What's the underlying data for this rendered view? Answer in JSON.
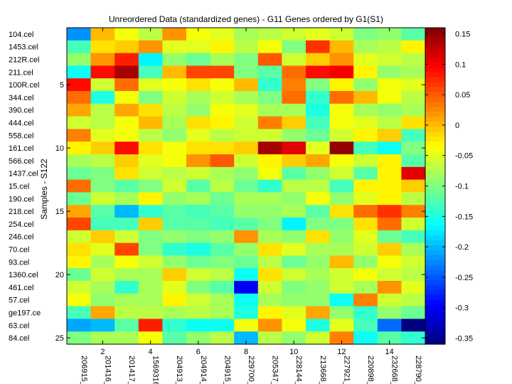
{
  "chart_data": {
    "type": "heatmap",
    "title": "Unreordered Data (standardized genes) - G11 Genes ordered by G1(S1)",
    "ylabel": "Samples - S122",
    "xlabel": "",
    "row_labels": [
      "104.cel",
      "1453.cel",
      "212R.cel",
      "211.cel",
      "100R.cel",
      "344.cel",
      "390.cel",
      "444.cel",
      "558.cel",
      "161.cel",
      "566.cel",
      "1437.cel",
      "15.cel",
      "190.cel",
      "218.cel",
      "254.cel",
      "246.cel",
      "70.cel",
      "93.cel",
      "1360.cel",
      "461.cel",
      "57.cel",
      "ge197.ce",
      "63.cel",
      "84.cel"
    ],
    "col_labels": [
      "206915_",
      "201416_",
      "201417_",
      "1569316",
      "204913_",
      "204914_",
      "204915_",
      "229700_",
      "205347_",
      "228144_",
      "213668_",
      "227921_",
      "220898_",
      "232668_",
      "228790_"
    ],
    "x_ticks": [
      2,
      4,
      6,
      8,
      10,
      12,
      14
    ],
    "y_ticks": [
      5,
      10,
      15,
      20,
      25
    ],
    "colorbar": {
      "min": -0.36,
      "max": 0.16,
      "ticks": [
        0.15,
        0.1,
        0.05,
        0,
        -0.05,
        -0.1,
        -0.15,
        -0.2,
        -0.25,
        -0.3,
        -0.35
      ],
      "tick_labels": [
        "0.15",
        "0.1",
        "0.05",
        "0",
        "-0.05",
        "-0.1",
        "-0.15",
        "-0.2",
        "-0.25",
        "-0.3",
        "-0.35"
      ]
    },
    "values": [
      [
        -0.22,
        0.0,
        -0.04,
        -0.07,
        0.02,
        -0.04,
        -0.05,
        -0.08,
        -0.07,
        -0.06,
        -0.05,
        -0.06,
        -0.1,
        -0.09,
        -0.12
      ],
      [
        -0.13,
        -0.02,
        -0.01,
        0.02,
        -0.05,
        -0.05,
        -0.03,
        -0.07,
        -0.04,
        -0.1,
        0.07,
        0.0,
        -0.08,
        -0.07,
        -0.03
      ],
      [
        -0.09,
        0.02,
        0.08,
        -0.17,
        -0.09,
        -0.11,
        -0.08,
        -0.1,
        0.05,
        -0.06,
        -0.01,
        0.02,
        -0.05,
        -0.06,
        -0.07
      ],
      [
        -0.16,
        0.09,
        0.14,
        -0.13,
        0.0,
        0.06,
        0.06,
        -0.1,
        -0.12,
        0.04,
        0.09,
        0.1,
        -0.03,
        -0.09,
        -0.08
      ],
      [
        0.09,
        -0.06,
        0.04,
        -0.05,
        -0.04,
        -0.02,
        -0.04,
        0.0,
        -0.14,
        0.03,
        -0.1,
        -0.03,
        -0.09,
        -0.04,
        -0.05
      ],
      [
        0.04,
        -0.15,
        -0.04,
        -0.1,
        -0.06,
        -0.08,
        -0.06,
        -0.08,
        -0.1,
        0.04,
        -0.14,
        0.04,
        0.0,
        -0.04,
        -0.07
      ],
      [
        0.01,
        -0.07,
        0.01,
        -0.02,
        -0.07,
        -0.09,
        -0.04,
        -0.05,
        -0.08,
        -0.08,
        -0.15,
        -0.04,
        -0.08,
        -0.09,
        -0.08
      ],
      [
        -0.06,
        -0.07,
        -0.04,
        0.0,
        -0.08,
        -0.02,
        -0.03,
        -0.06,
        0.03,
        -0.01,
        -0.13,
        -0.04,
        -0.05,
        -0.07,
        -0.02
      ],
      [
        0.03,
        -0.05,
        -0.04,
        -0.07,
        -0.09,
        -0.05,
        -0.07,
        -0.06,
        -0.06,
        -0.09,
        -0.11,
        -0.06,
        -0.03,
        -0.01,
        -0.13
      ],
      [
        -0.03,
        -0.01,
        0.09,
        -0.02,
        -0.04,
        -0.02,
        -0.02,
        -0.01,
        0.14,
        0.11,
        -0.05,
        0.15,
        -0.13,
        -0.16,
        -0.1
      ],
      [
        -0.08,
        -0.07,
        -0.01,
        -0.05,
        -0.04,
        0.02,
        0.05,
        -0.06,
        -0.03,
        -0.01,
        0.01,
        -0.04,
        -0.06,
        -0.03,
        -0.12
      ],
      [
        -0.11,
        -0.1,
        -0.02,
        -0.06,
        -0.07,
        -0.06,
        -0.08,
        -0.09,
        -0.04,
        -0.12,
        -0.09,
        -0.06,
        -0.12,
        -0.03,
        0.11
      ],
      [
        0.04,
        -0.1,
        -0.12,
        -0.1,
        -0.06,
        -0.12,
        -0.07,
        -0.11,
        -0.14,
        -0.07,
        -0.07,
        -0.13,
        -0.03,
        -0.03,
        -0.01
      ],
      [
        -0.11,
        -0.06,
        -0.08,
        -0.03,
        -0.09,
        -0.08,
        -0.11,
        -0.08,
        -0.08,
        -0.09,
        -0.04,
        -0.09,
        -0.05,
        -0.03,
        -0.07
      ],
      [
        0.01,
        -0.12,
        -0.2,
        -0.14,
        -0.12,
        -0.13,
        -0.12,
        -0.09,
        -0.09,
        -0.08,
        -0.12,
        -0.02,
        0.04,
        0.07,
        0.03
      ],
      [
        0.06,
        -0.13,
        -0.13,
        -0.01,
        -0.12,
        -0.12,
        -0.13,
        -0.12,
        -0.1,
        -0.17,
        -0.1,
        -0.1,
        -0.02,
        0.04,
        -0.06
      ],
      [
        -0.06,
        -0.01,
        -0.06,
        -0.1,
        -0.09,
        -0.1,
        -0.09,
        0.02,
        -0.08,
        -0.09,
        -0.02,
        -0.09,
        -0.05,
        -0.11,
        -0.13
      ],
      [
        -0.02,
        -0.05,
        0.06,
        -0.1,
        -0.14,
        -0.15,
        -0.12,
        -0.09,
        -0.02,
        -0.05,
        -0.08,
        -0.08,
        -0.06,
        -0.01,
        -0.08
      ],
      [
        -0.03,
        -0.08,
        -0.04,
        -0.06,
        -0.09,
        -0.11,
        -0.1,
        -0.11,
        -0.07,
        -0.11,
        -0.09,
        0.0,
        -0.09,
        -0.04,
        -0.06
      ],
      [
        -0.11,
        -0.06,
        -0.08,
        -0.08,
        -0.01,
        -0.06,
        -0.07,
        -0.16,
        -0.02,
        -0.06,
        -0.08,
        -0.06,
        -0.04,
        -0.06,
        -0.07
      ],
      [
        -0.06,
        -0.08,
        -0.14,
        -0.08,
        -0.05,
        -0.1,
        -0.12,
        -0.3,
        -0.06,
        -0.1,
        -0.09,
        -0.06,
        -0.08,
        0.02,
        -0.05
      ],
      [
        -0.04,
        -0.09,
        -0.08,
        -0.08,
        -0.03,
        -0.06,
        -0.08,
        -0.16,
        -0.08,
        -0.09,
        -0.09,
        -0.16,
        0.03,
        -0.06,
        -0.07
      ],
      [
        -0.13,
        0.01,
        -0.07,
        -0.07,
        -0.08,
        -0.07,
        -0.08,
        -0.15,
        -0.03,
        -0.05,
        0.01,
        -0.09,
        -0.14,
        -0.09,
        -0.11
      ],
      [
        -0.21,
        -0.2,
        -0.12,
        0.08,
        -0.14,
        -0.16,
        -0.16,
        -0.04,
        0.02,
        -0.04,
        -0.15,
        -0.05,
        -0.13,
        -0.24,
        -0.36
      ],
      [
        -0.1,
        -0.08,
        -0.08,
        -0.04,
        -0.12,
        -0.09,
        -0.07,
        -0.2,
        -0.07,
        -0.09,
        -0.06,
        0.03,
        -0.16,
        -0.12,
        -0.14
      ]
    ]
  }
}
